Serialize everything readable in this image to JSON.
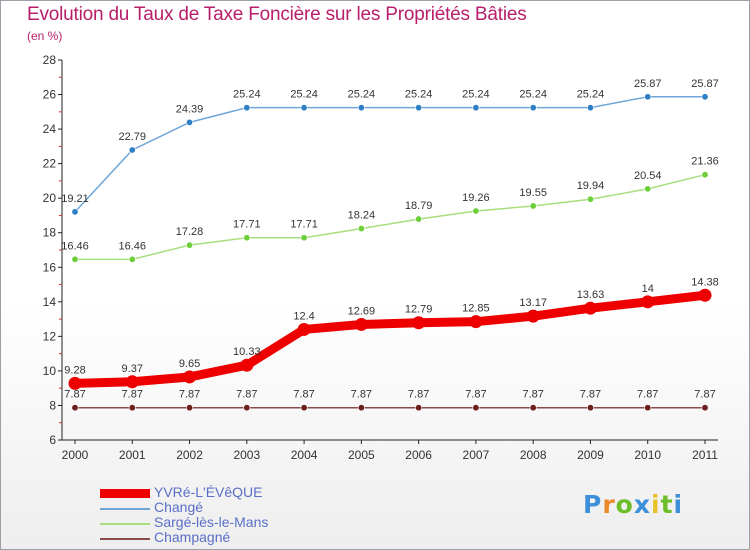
{
  "header": {
    "title": "Evolution du Taux de Taxe Foncière sur les Propriétés Bâties",
    "unit": "(en %)"
  },
  "chart_data": {
    "type": "line",
    "title": "Evolution du Taux de Taxe Foncière sur les Propriétés Bâties",
    "ylabel": "(en %)",
    "xlabel": "",
    "x": [
      "2000",
      "2001",
      "2002",
      "2003",
      "2004",
      "2005",
      "2006",
      "2007",
      "2008",
      "2009",
      "2010",
      "2011"
    ],
    "ylim": [
      6,
      28
    ],
    "yticks": [
      "6",
      "8",
      "10",
      "12",
      "14",
      "16",
      "18",
      "20",
      "22",
      "24",
      "26",
      "28"
    ],
    "grid": false,
    "series": [
      {
        "name": "YVRé-L'ÉVêQUE",
        "color": "#ee0000",
        "emphasis": true,
        "values": [
          9.28,
          9.37,
          9.65,
          10.33,
          12.4,
          12.69,
          12.79,
          12.85,
          13.17,
          13.63,
          14,
          14.38
        ],
        "labels": [
          "9.28",
          "9.37",
          "9.65",
          "10.33",
          "12.4",
          "12.69",
          "12.79",
          "12.85",
          "13.17",
          "13.63",
          "14",
          "14.38"
        ]
      },
      {
        "name": "Changé",
        "color": "#6fa6d8",
        "marker": "#2f7fc6",
        "values": [
          19.21,
          22.79,
          24.39,
          25.24,
          25.24,
          25.24,
          25.24,
          25.24,
          25.24,
          25.24,
          25.87,
          25.87
        ],
        "labels": [
          "19.21",
          "22.79",
          "24.39",
          "25.24",
          "25.24",
          "25.24",
          "25.24",
          "25.24",
          "25.24",
          "25.24",
          "25.87",
          "25.87"
        ]
      },
      {
        "name": "Sargé-lès-le-Mans",
        "color": "#a8df7e",
        "marker": "#6ccf3a",
        "values": [
          16.46,
          16.46,
          17.28,
          17.71,
          17.71,
          18.24,
          18.79,
          19.26,
          19.55,
          19.94,
          20.54,
          21.36
        ],
        "labels": [
          "16.46",
          "16.46",
          "17.28",
          "17.71",
          "17.71",
          "18.24",
          "18.79",
          "19.26",
          "19.55",
          "19.94",
          "20.54",
          "21.36"
        ]
      },
      {
        "name": "Champagné",
        "color": "#8a4a4a",
        "marker": "#6b1f1f",
        "values": [
          7.87,
          7.87,
          7.87,
          7.87,
          7.87,
          7.87,
          7.87,
          7.87,
          7.87,
          7.87,
          7.87,
          7.87
        ],
        "labels": [
          "7.87",
          "7.87",
          "7.87",
          "7.87",
          "7.87",
          "7.87",
          "7.87",
          "7.87",
          "7.87",
          "7.87",
          "7.87",
          "7.87"
        ]
      }
    ],
    "legend_position": "bottom-left"
  },
  "logo": {
    "letters": [
      "P",
      "r",
      "o",
      "x",
      "i",
      "t",
      "i"
    ],
    "colors": [
      "#3c8fd8",
      "#e8892a",
      "#6cbf2a",
      "#3c8fd8",
      "#e8c12a",
      "#6cbf2a",
      "#3c8fd8"
    ]
  }
}
